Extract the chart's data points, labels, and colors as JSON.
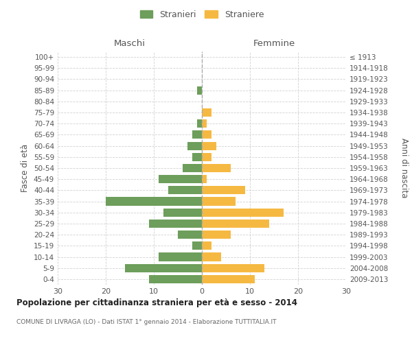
{
  "age_groups": [
    "0-4",
    "5-9",
    "10-14",
    "15-19",
    "20-24",
    "25-29",
    "30-34",
    "35-39",
    "40-44",
    "45-49",
    "50-54",
    "55-59",
    "60-64",
    "65-69",
    "70-74",
    "75-79",
    "80-84",
    "85-89",
    "90-94",
    "95-99",
    "100+"
  ],
  "birth_years": [
    "2009-2013",
    "2004-2008",
    "1999-2003",
    "1994-1998",
    "1989-1993",
    "1984-1988",
    "1979-1983",
    "1974-1978",
    "1969-1973",
    "1964-1968",
    "1959-1963",
    "1954-1958",
    "1949-1953",
    "1944-1948",
    "1939-1943",
    "1934-1938",
    "1929-1933",
    "1924-1928",
    "1919-1923",
    "1914-1918",
    "≤ 1913"
  ],
  "maschi": [
    11,
    16,
    9,
    2,
    5,
    11,
    8,
    20,
    7,
    9,
    4,
    2,
    3,
    2,
    1,
    0,
    0,
    1,
    0,
    0,
    0
  ],
  "femmine": [
    11,
    13,
    4,
    2,
    6,
    14,
    17,
    7,
    9,
    1,
    6,
    2,
    3,
    2,
    1,
    2,
    0,
    0,
    0,
    0,
    0
  ],
  "color_maschi": "#6d9e5b",
  "color_femmine": "#f5b942",
  "title": "Popolazione per cittadinanza straniera per età e sesso - 2014",
  "subtitle": "COMUNE DI LIVRAGA (LO) - Dati ISTAT 1° gennaio 2014 - Elaborazione TUTTITALIA.IT",
  "ylabel_left": "Fasce di età",
  "ylabel_right": "Anni di nascita",
  "label_maschi": "Maschi",
  "label_femmine": "Femmine",
  "legend_maschi": "Stranieri",
  "legend_femmine": "Straniere",
  "xlim": 30,
  "background_color": "#ffffff",
  "grid_color": "#cccccc"
}
